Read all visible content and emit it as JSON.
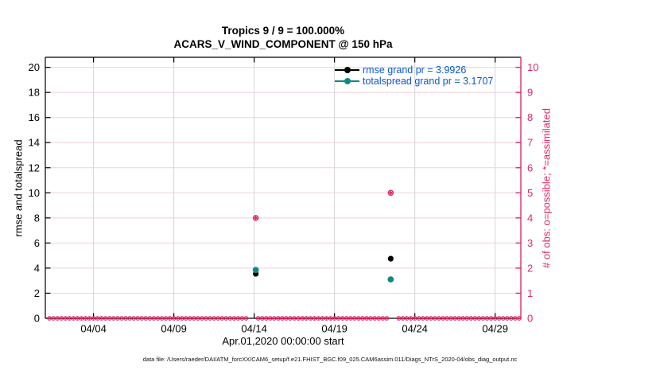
{
  "colors": {
    "accent_magenta": "#dd2a6a",
    "teal": "#108a7e",
    "rmse_black": "#000000",
    "legend_text_blue": "#0b57d0",
    "grid_pink": "#f3cfdd",
    "grid_gray": "#d8d3d7",
    "background": "#ffffff"
  },
  "footer": {
    "text": "data file: /Users/raeder/DAI/ATM_forcXX/CAM6_setup/f.e21.FHIST_BGC.f09_025.CAM6assim.011/Diags_NTrS_2020-04/obs_diag_output.nc"
  },
  "chart_data": {
    "type": "scatter",
    "title": "Tropics 9 / 9 = 100.000%",
    "subtitle": "ACARS_V_WIND_COMPONENT @ 150 hPa",
    "xlabel": "Apr.01,2020 00:00:00 start",
    "ylabel_left": "rmse and totalspread",
    "ylabel_right": "# of obs: o=possible; *=assimilated",
    "grid": true,
    "legend_position": "top-right-inside",
    "x_axis": {
      "start": "Apr.01,2020 00:00:00",
      "lim_days": [
        0,
        29.6
      ],
      "ticks": [
        {
          "day": 3,
          "label": "04/04"
        },
        {
          "day": 8,
          "label": "04/09"
        },
        {
          "day": 13,
          "label": "04/14"
        },
        {
          "day": 18,
          "label": "04/19"
        },
        {
          "day": 23,
          "label": "04/24"
        },
        {
          "day": 28,
          "label": "04/29"
        }
      ]
    },
    "y_axis_left": {
      "lim": [
        0,
        20.8
      ],
      "ticks": [
        0,
        2,
        4,
        6,
        8,
        10,
        12,
        14,
        16,
        18,
        20
      ]
    },
    "y_axis_right": {
      "lim": [
        0,
        10.4
      ],
      "ticks": [
        0,
        1,
        2,
        3,
        4,
        5,
        6,
        7,
        8,
        9,
        10
      ]
    },
    "series": [
      {
        "name": "rmse grand pr = 3.9926",
        "color_key": "rmse_black",
        "marker": "filled-circle",
        "grand_pr": 3.9926,
        "points": [
          {
            "day": 13.1,
            "value": 3.55
          },
          {
            "day": 21.5,
            "value": 4.75
          }
        ]
      },
      {
        "name": "totalspread grand pr = 3.1707",
        "color_key": "teal",
        "marker": "filled-circle",
        "grand_pr": 3.1707,
        "points": [
          {
            "day": 13.1,
            "value": 3.85
          },
          {
            "day": 21.5,
            "value": 3.1
          }
        ]
      }
    ],
    "obs_counts": {
      "axis": "right",
      "marker_meaning": "o=possible; *=assimilated",
      "nonzero_points": [
        {
          "day": 13.1,
          "possible": 4,
          "assimilated": 4
        },
        {
          "day": 21.5,
          "possible": 5,
          "assimilated": 5
        }
      ],
      "zero_row": {
        "interval_days": 0.25,
        "range_days": [
          0.25,
          29.5
        ],
        "gap_ranges_days": [
          [
            12.55,
            13.05
          ],
          [
            21.3,
            21.9
          ]
        ]
      }
    }
  }
}
